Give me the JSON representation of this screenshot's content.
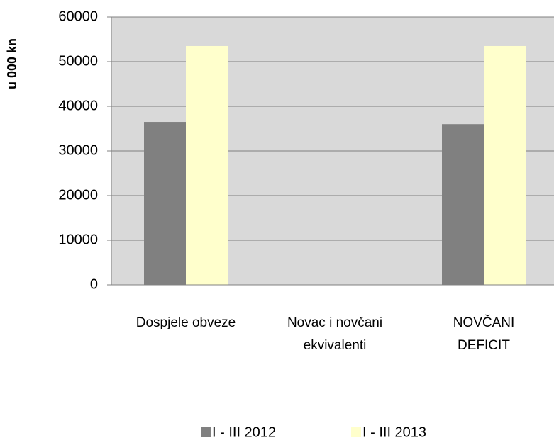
{
  "chart_data": {
    "type": "bar",
    "y_axis_label": "u 000 kn",
    "categories": [
      "Dospjele obveze",
      "Novac i novčani ekvivalenti",
      "NOVČANI DEFICIT"
    ],
    "series": [
      {
        "name": "I - III 2012",
        "color": "#808080",
        "values": [
          36500,
          0,
          36000
        ]
      },
      {
        "name": "I - III 2013",
        "color": "#ffffcc",
        "values": [
          53500,
          0,
          53500
        ]
      }
    ],
    "ylim": [
      0,
      60000
    ],
    "yticks": [
      0,
      10000,
      20000,
      30000,
      40000,
      50000,
      60000
    ],
    "grid": true,
    "plot_background": "#d9d9d9",
    "legend": "bottom"
  }
}
